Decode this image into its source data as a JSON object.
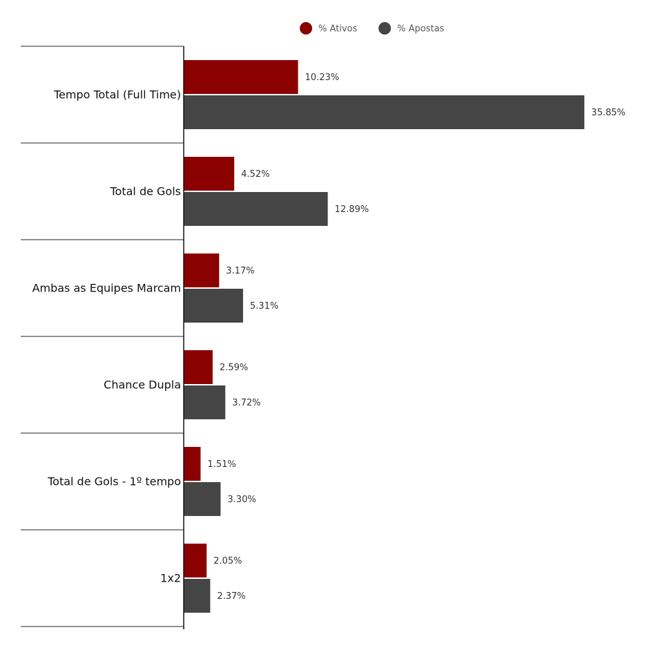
{
  "chart_data": {
    "type": "hbar",
    "categories": [
      "Tempo Total (Full Time)",
      "Total de Gols",
      "Ambas as Equipes Marcam",
      "Chance Dupla",
      "Total de Gols - 1º tempo",
      "1x2"
    ],
    "series": [
      {
        "name": "% Ativos",
        "color": "#8b0000",
        "values": [
          10.23,
          4.52,
          3.17,
          2.59,
          1.51,
          2.05
        ],
        "value_labels": [
          "10.23%",
          "4.52%",
          "3.17%",
          "2.59%",
          "1.51%",
          "2.05%"
        ]
      },
      {
        "name": "% Apostas",
        "color": "#454545",
        "values": [
          35.85,
          12.89,
          5.31,
          3.72,
          3.3,
          2.37
        ],
        "value_labels": [
          "35.85%",
          "12.89%",
          "5.31%",
          "3.72%",
          "3.30%",
          "2.37%"
        ]
      }
    ],
    "legend": "top"
  }
}
